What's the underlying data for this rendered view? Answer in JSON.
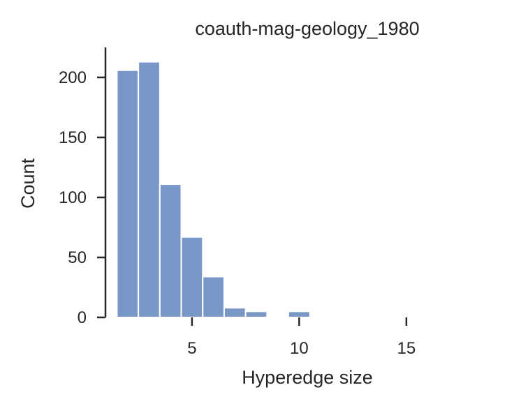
{
  "chart_data": {
    "type": "bar",
    "title": "coauth-mag-geology_1980",
    "xlabel": "Hyperedge size",
    "ylabel": "Count",
    "bin_start": 1.5,
    "bin_width": 1.0,
    "values": [
      206,
      213,
      111,
      67,
      34,
      8,
      5,
      1,
      5,
      0,
      0,
      0,
      1
    ],
    "xticks": [
      5,
      10,
      15
    ],
    "yticks": [
      0,
      50,
      100,
      150,
      200
    ],
    "xlim": [
      -2.0,
      19.5
    ],
    "ylim": [
      0,
      225
    ],
    "grid": false,
    "legend": "none",
    "bar_color": "#7896c6"
  }
}
